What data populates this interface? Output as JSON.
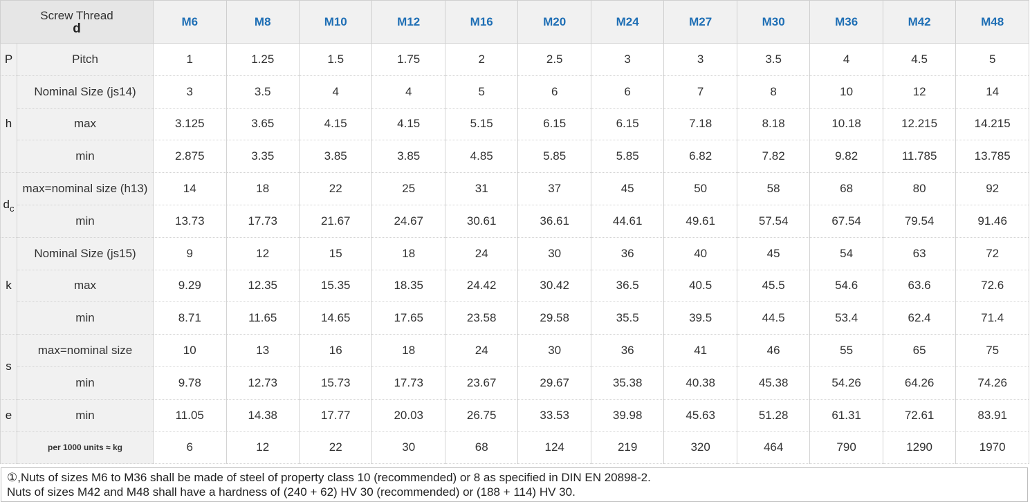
{
  "header": {
    "label_line1": "Screw Thread",
    "label_line2": "d",
    "sizes": [
      "M6",
      "M8",
      "M10",
      "M12",
      "M16",
      "M20",
      "M24",
      "M27",
      "M30",
      "M36",
      "M42",
      "M48"
    ]
  },
  "symbols": {
    "P": "P",
    "h": "h",
    "dc": "d",
    "dc_sub": "c",
    "k": "k",
    "s": "s",
    "e": "e"
  },
  "rows": [
    {
      "label": "Pitch",
      "values": [
        "1",
        "1.25",
        "1.5",
        "1.75",
        "2",
        "2.5",
        "3",
        "3",
        "3.5",
        "4",
        "4.5",
        "5"
      ]
    },
    {
      "label": "Nominal Size (js14)",
      "values": [
        "3",
        "3.5",
        "4",
        "4",
        "5",
        "6",
        "6",
        "7",
        "8",
        "10",
        "12",
        "14"
      ]
    },
    {
      "label": "max",
      "values": [
        "3.125",
        "3.65",
        "4.15",
        "4.15",
        "5.15",
        "6.15",
        "6.15",
        "7.18",
        "8.18",
        "10.18",
        "12.215",
        "14.215"
      ]
    },
    {
      "label": "min",
      "values": [
        "2.875",
        "3.35",
        "3.85",
        "3.85",
        "4.85",
        "5.85",
        "5.85",
        "6.82",
        "7.82",
        "9.82",
        "11.785",
        "13.785"
      ]
    },
    {
      "label": "max=nominal size (h13)",
      "values": [
        "14",
        "18",
        "22",
        "25",
        "31",
        "37",
        "45",
        "50",
        "58",
        "68",
        "80",
        "92"
      ]
    },
    {
      "label": "min",
      "values": [
        "13.73",
        "17.73",
        "21.67",
        "24.67",
        "30.61",
        "36.61",
        "44.61",
        "49.61",
        "57.54",
        "67.54",
        "79.54",
        "91.46"
      ]
    },
    {
      "label": "Nominal Size (js15)",
      "values": [
        "9",
        "12",
        "15",
        "18",
        "24",
        "30",
        "36",
        "40",
        "45",
        "54",
        "63",
        "72"
      ]
    },
    {
      "label": "max",
      "values": [
        "9.29",
        "12.35",
        "15.35",
        "18.35",
        "24.42",
        "30.42",
        "36.5",
        "40.5",
        "45.5",
        "54.6",
        "63.6",
        "72.6"
      ]
    },
    {
      "label": "min",
      "values": [
        "8.71",
        "11.65",
        "14.65",
        "17.65",
        "23.58",
        "29.58",
        "35.5",
        "39.5",
        "44.5",
        "53.4",
        "62.4",
        "71.4"
      ]
    },
    {
      "label": "max=nominal size",
      "values": [
        "10",
        "13",
        "16",
        "18",
        "24",
        "30",
        "36",
        "41",
        "46",
        "55",
        "65",
        "75"
      ]
    },
    {
      "label": "min",
      "values": [
        "9.78",
        "12.73",
        "15.73",
        "17.73",
        "23.67",
        "29.67",
        "35.38",
        "40.38",
        "45.38",
        "54.26",
        "64.26",
        "74.26"
      ]
    },
    {
      "label": "min",
      "values": [
        "11.05",
        "14.38",
        "17.77",
        "20.03",
        "26.75",
        "33.53",
        "39.98",
        "45.63",
        "51.28",
        "61.31",
        "72.61",
        "83.91"
      ]
    },
    {
      "label": "per 1000 units ≈ kg",
      "values": [
        "6",
        "12",
        "22",
        "30",
        "68",
        "124",
        "219",
        "320",
        "464",
        "790",
        "1290",
        "1970"
      ]
    }
  ],
  "notes": [
    "①,Nuts of sizes M6 to M36 shall be made of steel of property class 10 (recommended) or 8 as specified in DIN EN 20898-2.",
    "Nuts of sizes M42 and M48 shall have a hardness of (240 + 62) HV 30 (recommended) or (188 + 114) HV 30."
  ]
}
